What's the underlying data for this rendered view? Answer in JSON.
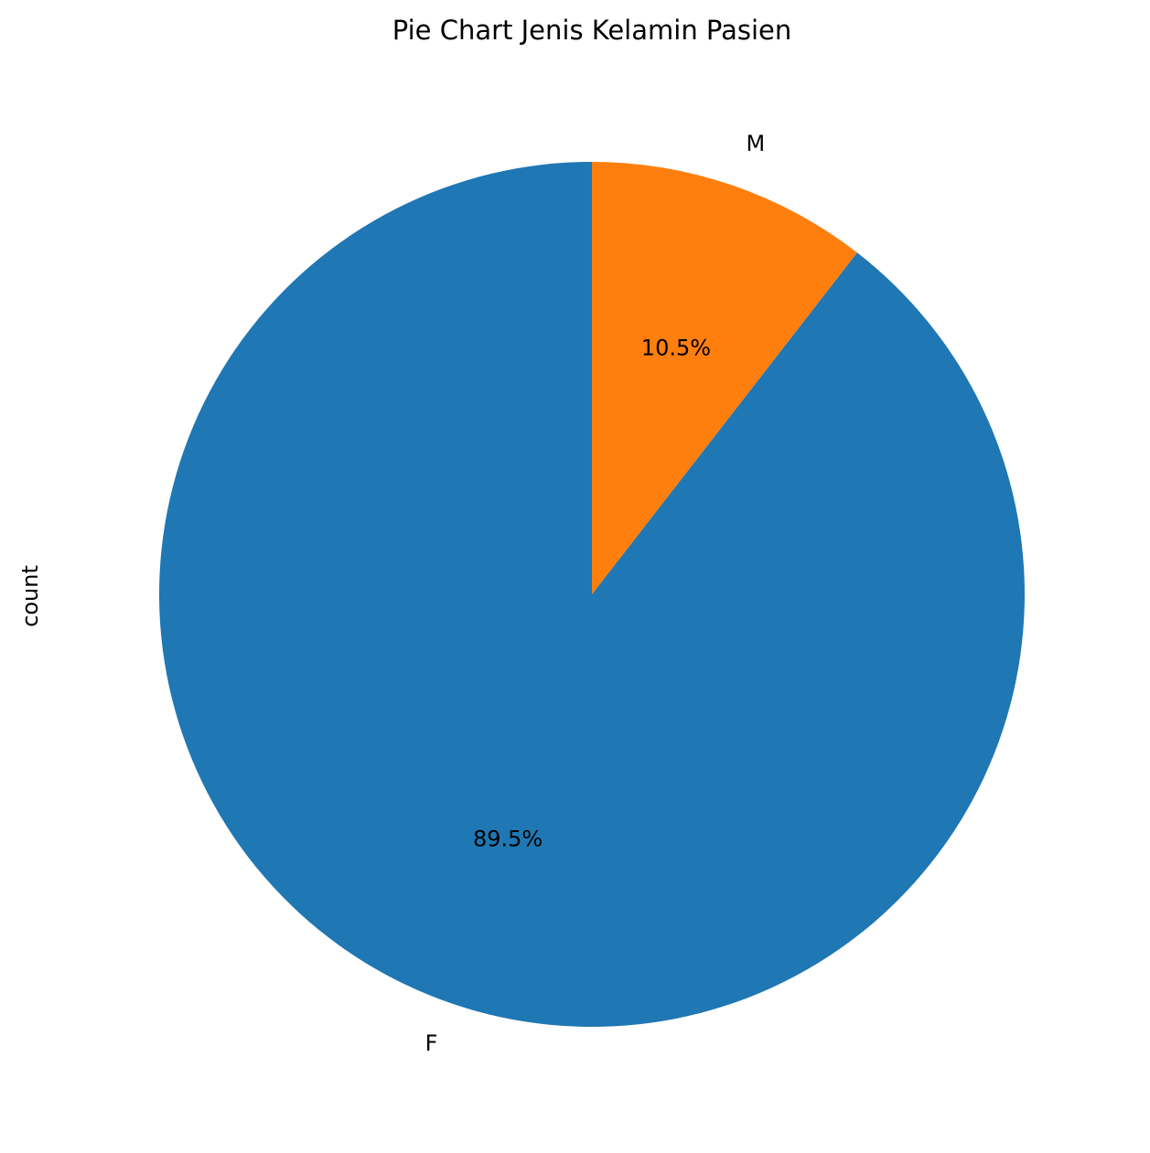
{
  "chart_data": {
    "type": "pie",
    "title": "Pie Chart Jenis Kelamin Pasien",
    "ylabel": "count",
    "slices": [
      {
        "label": "F",
        "percent": 89.5,
        "percent_label": "89.5%",
        "color": "#1f77b4"
      },
      {
        "label": "M",
        "percent": 10.5,
        "percent_label": "10.5%",
        "color": "#ff7f0e"
      }
    ],
    "start_angle_deg": 90,
    "direction": "counterclockwise",
    "legend": "none"
  }
}
